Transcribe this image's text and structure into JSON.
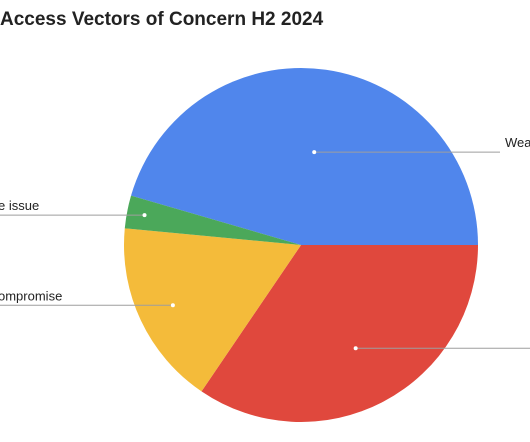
{
  "chart_data": {
    "type": "pie",
    "title": "Access Vectors of Concern H2 2024",
    "slices": [
      {
        "label": "Wea",
        "value": 45.5,
        "color": "#5086ec"
      },
      {
        "label": "",
        "value": 34.5,
        "color": "#e0483d"
      },
      {
        "label": "ompromise",
        "value": 17.0,
        "color": "#f4bb3a"
      },
      {
        "label": "e issue",
        "value": 3.0,
        "color": "#4ba85a"
      }
    ]
  }
}
